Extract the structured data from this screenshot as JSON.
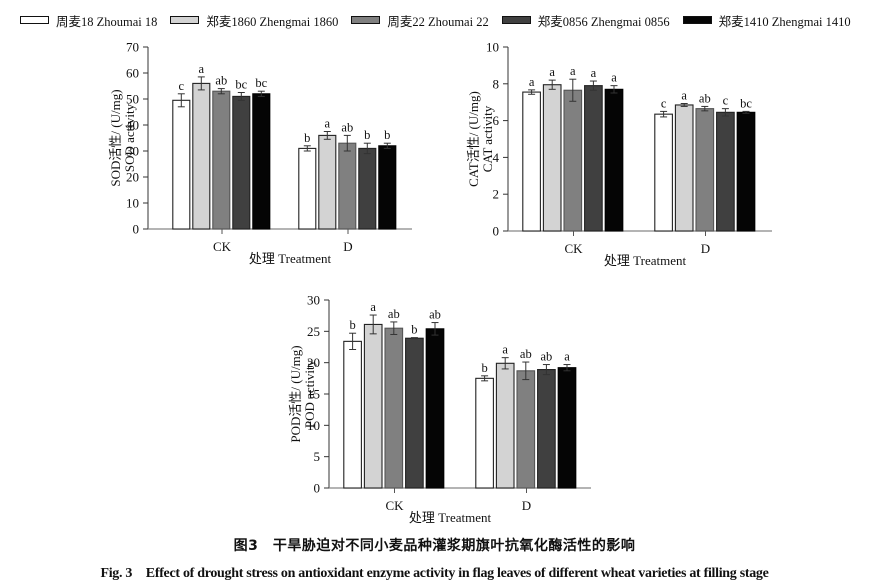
{
  "legend": [
    {
      "label": "周麦18 Zhoumai 18",
      "color": "#ffffff"
    },
    {
      "label": "郑麦1860 Zhengmai 1860",
      "color": "#d3d3d3"
    },
    {
      "label": "周麦22 Zhoumai 22",
      "color": "#808080"
    },
    {
      "label": "郑麦0856 Zhengmai 0856",
      "color": "#404040"
    },
    {
      "label": "郑麦1410 Zhengmai 1410",
      "color": "#050505"
    }
  ],
  "caption": {
    "cn": "图3　干旱胁迫对不同小麦品种灌浆期旗叶抗氧化酶活性的影响",
    "en": "Fig. 3　Effect of drought stress on antioxidant enzyme activity in flag leaves of different wheat varieties at filling stage"
  },
  "chart_data": [
    {
      "id": "sod",
      "type": "bar",
      "title": "",
      "xlabel": "处理 Treatment",
      "ylabel_cn": "SOD活性/ (U/mg)",
      "ylabel_en": "SOD activity",
      "categories": [
        "CK",
        "D"
      ],
      "ylim": [
        0,
        70
      ],
      "yticks": [
        0,
        10,
        20,
        30,
        40,
        50,
        60,
        70
      ],
      "series": [
        {
          "name": "周麦18 Zhoumai 18",
          "values": [
            49.5,
            31.0
          ],
          "errors": [
            2.5,
            1.0
          ],
          "letters": [
            "c",
            "b"
          ]
        },
        {
          "name": "郑麦1860 Zhengmai 1860",
          "values": [
            56.0,
            36.0
          ],
          "errors": [
            2.5,
            1.5
          ],
          "letters": [
            "a",
            "a"
          ]
        },
        {
          "name": "周麦22 Zhoumai 22",
          "values": [
            53.0,
            33.0
          ],
          "errors": [
            1.0,
            3.0
          ],
          "letters": [
            "ab",
            "ab"
          ]
        },
        {
          "name": "郑麦0856 Zhengmai 0856",
          "values": [
            51.0,
            31.0
          ],
          "errors": [
            1.5,
            2.0
          ],
          "letters": [
            "bc",
            "b"
          ]
        },
        {
          "name": "郑麦1410 Zhengmai 1410",
          "values": [
            52.0,
            32.0
          ],
          "errors": [
            1.0,
            1.0
          ],
          "letters": [
            "bc",
            "b"
          ]
        }
      ],
      "grid": false,
      "legend": "top"
    },
    {
      "id": "cat",
      "type": "bar",
      "title": "",
      "xlabel": "处理 Treatment",
      "ylabel_cn": "CAT活性/ (U/mg)",
      "ylabel_en": "CAT activity",
      "categories": [
        "CK",
        "D"
      ],
      "ylim": [
        0,
        10
      ],
      "yticks": [
        0,
        2,
        4,
        6,
        8,
        10
      ],
      "series": [
        {
          "name": "周麦18 Zhoumai 18",
          "values": [
            7.55,
            6.35
          ],
          "errors": [
            0.12,
            0.15
          ],
          "letters": [
            "a",
            "c"
          ]
        },
        {
          "name": "郑麦1860 Zhengmai 1860",
          "values": [
            7.95,
            6.85
          ],
          "errors": [
            0.25,
            0.08
          ],
          "letters": [
            "a",
            "a"
          ]
        },
        {
          "name": "周麦22 Zhoumai 22",
          "values": [
            7.65,
            6.65
          ],
          "errors": [
            0.6,
            0.12
          ],
          "letters": [
            "a",
            "ab"
          ]
        },
        {
          "name": "郑麦0856 Zhengmai 0856",
          "values": [
            7.9,
            6.45
          ],
          "errors": [
            0.25,
            0.2
          ],
          "letters": [
            "a",
            "c"
          ]
        },
        {
          "name": "郑麦1410 Zhengmai 1410",
          "values": [
            7.7,
            6.45
          ],
          "errors": [
            0.2,
            0.05
          ],
          "letters": [
            "a",
            "bc"
          ]
        }
      ],
      "grid": false,
      "legend": "top"
    },
    {
      "id": "pod",
      "type": "bar",
      "title": "",
      "xlabel": "处理 Treatment",
      "ylabel_cn": "POD活性/ (U/mg)",
      "ylabel_en": "POD activity",
      "categories": [
        "CK",
        "D"
      ],
      "ylim": [
        0,
        30
      ],
      "yticks": [
        0,
        5,
        10,
        15,
        20,
        25,
        30
      ],
      "series": [
        {
          "name": "周麦18 Zhoumai 18",
          "values": [
            23.4,
            17.5
          ],
          "errors": [
            1.3,
            0.4
          ],
          "letters": [
            "b",
            "b"
          ]
        },
        {
          "name": "郑麦1860 Zhengmai 1860",
          "values": [
            26.1,
            19.9
          ],
          "errors": [
            1.5,
            0.9
          ],
          "letters": [
            "a",
            "a"
          ]
        },
        {
          "name": "周麦22 Zhoumai 22",
          "values": [
            25.5,
            18.7
          ],
          "errors": [
            1.0,
            1.4
          ],
          "letters": [
            "ab",
            "ab"
          ]
        },
        {
          "name": "郑麦0856 Zhengmai 0856",
          "values": [
            23.9,
            18.9
          ],
          "errors": [
            0.1,
            0.8
          ],
          "letters": [
            "b",
            "ab"
          ]
        },
        {
          "name": "郑麦1410 Zhengmai 1410",
          "values": [
            25.4,
            19.2
          ],
          "errors": [
            1.0,
            0.5
          ],
          "letters": [
            "ab",
            "a"
          ]
        }
      ],
      "grid": false,
      "legend": "top"
    }
  ]
}
